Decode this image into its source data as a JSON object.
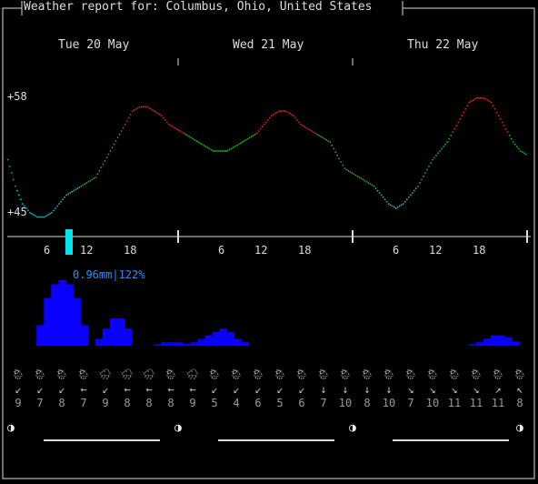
{
  "header": {
    "title": "Weather report for: Columbus, Ohio, United States"
  },
  "days": [
    "Tue 20 May",
    "Wed 21 May",
    "Thu 22 May"
  ],
  "y_axis": {
    "top_label": "+58",
    "bottom_label": "+45"
  },
  "hour_labels": [
    "6",
    "12",
    "18",
    "6",
    "12",
    "18",
    "6",
    "12",
    "18"
  ],
  "precip_label": "0.96mm|122%",
  "chart_data": {
    "type": "line",
    "ylim": [
      45,
      58
    ],
    "hours": [
      0,
      1,
      2,
      3,
      4,
      5,
      6,
      7,
      8,
      9,
      10,
      11,
      12,
      13,
      14,
      15,
      16,
      17,
      18,
      19,
      20,
      21,
      22,
      23,
      24,
      25,
      26,
      27,
      28,
      29,
      30,
      31,
      32,
      33,
      34,
      35,
      36,
      37,
      38,
      39,
      40,
      41,
      42,
      43,
      44,
      45,
      46,
      47,
      48,
      49,
      50,
      51,
      52,
      53,
      54,
      55,
      56,
      57,
      58,
      59,
      60,
      61,
      62,
      63,
      64,
      65,
      66,
      67,
      68,
      69,
      70,
      71
    ],
    "temperature": [
      51,
      48,
      46,
      45,
      44.5,
      44.5,
      45,
      46,
      47,
      47.5,
      48,
      48.5,
      49,
      50.5,
      52,
      53.5,
      55,
      56.5,
      57,
      57,
      56.5,
      56,
      55,
      54.5,
      54,
      53.5,
      53,
      52.5,
      52,
      52,
      52,
      52.5,
      53,
      53.5,
      54,
      55,
      56,
      56.5,
      56.5,
      56,
      55,
      54.5,
      54,
      53.5,
      53,
      51.5,
      50,
      49.5,
      49,
      48.5,
      48,
      47,
      46,
      45.5,
      46,
      47,
      48,
      49.5,
      51,
      52,
      53,
      54.5,
      56,
      57.5,
      58,
      58,
      57.5,
      56,
      54.5,
      53,
      52,
      51.5
    ],
    "precip_mm": [
      0,
      0,
      0,
      0,
      0.3,
      0.7,
      0.9,
      0.96,
      0.9,
      0.7,
      0.3,
      0,
      0.1,
      0.25,
      0.4,
      0.4,
      0.25,
      0,
      0,
      0,
      0.02,
      0.05,
      0.05,
      0.05,
      0.03,
      0.05,
      0.1,
      0.15,
      0.2,
      0.25,
      0.2,
      0.1,
      0.05,
      0,
      0,
      0,
      0,
      0,
      0,
      0,
      0,
      0,
      0,
      0,
      0,
      0,
      0,
      0,
      0,
      0,
      0,
      0,
      0,
      0,
      0,
      0,
      0,
      0,
      0,
      0,
      0,
      0,
      0,
      0.02,
      0.05,
      0.1,
      0.15,
      0.15,
      0.12,
      0.06,
      0,
      0
    ],
    "precip_prob": [
      0,
      0,
      0,
      0,
      40,
      100,
      110,
      122,
      110,
      100,
      40,
      0,
      20,
      60,
      80,
      80,
      60,
      0,
      0,
      0,
      10,
      20,
      20,
      20,
      10,
      20,
      30,
      40,
      50,
      60,
      40,
      20,
      10,
      0,
      0,
      0,
      0,
      0,
      0,
      0,
      0,
      0,
      0,
      0,
      0,
      0,
      0,
      0,
      0,
      0,
      0,
      0,
      0,
      0,
      0,
      0,
      0,
      0,
      0,
      0,
      0,
      0,
      0,
      10,
      20,
      30,
      40,
      40,
      30,
      20,
      0,
      0
    ]
  },
  "weather_symbols": [
    "🌦",
    "🌦",
    "🌦",
    "🌦",
    "🌧",
    "🌧",
    "🌧",
    "🌦",
    "🌧",
    "🌦",
    "🌦",
    "🌦",
    "🌦",
    "🌦",
    "🌦",
    "🌦",
    "🌦",
    "🌦",
    "🌦",
    "🌦",
    "🌦",
    "🌦",
    "🌦",
    "🌦"
  ],
  "wind_arrows": [
    "↙",
    "↙",
    "↙",
    "←",
    "↙",
    "←",
    "←",
    "←",
    "←",
    "↙",
    "↙",
    "↙",
    "↙",
    "↙",
    "↓",
    "↓",
    "↓",
    "↓",
    "↘",
    "↘",
    "↘",
    "↘",
    "↗",
    "↖"
  ],
  "wind_speeds": [
    "9",
    "7",
    "8",
    "7",
    "9",
    "8",
    "8",
    "8",
    "9",
    "5",
    "4",
    "6",
    "5",
    "6",
    "7",
    "10",
    "8",
    "10",
    "7",
    "10",
    "11",
    "11",
    "11",
    "8"
  ],
  "moon_phase": "◑"
}
